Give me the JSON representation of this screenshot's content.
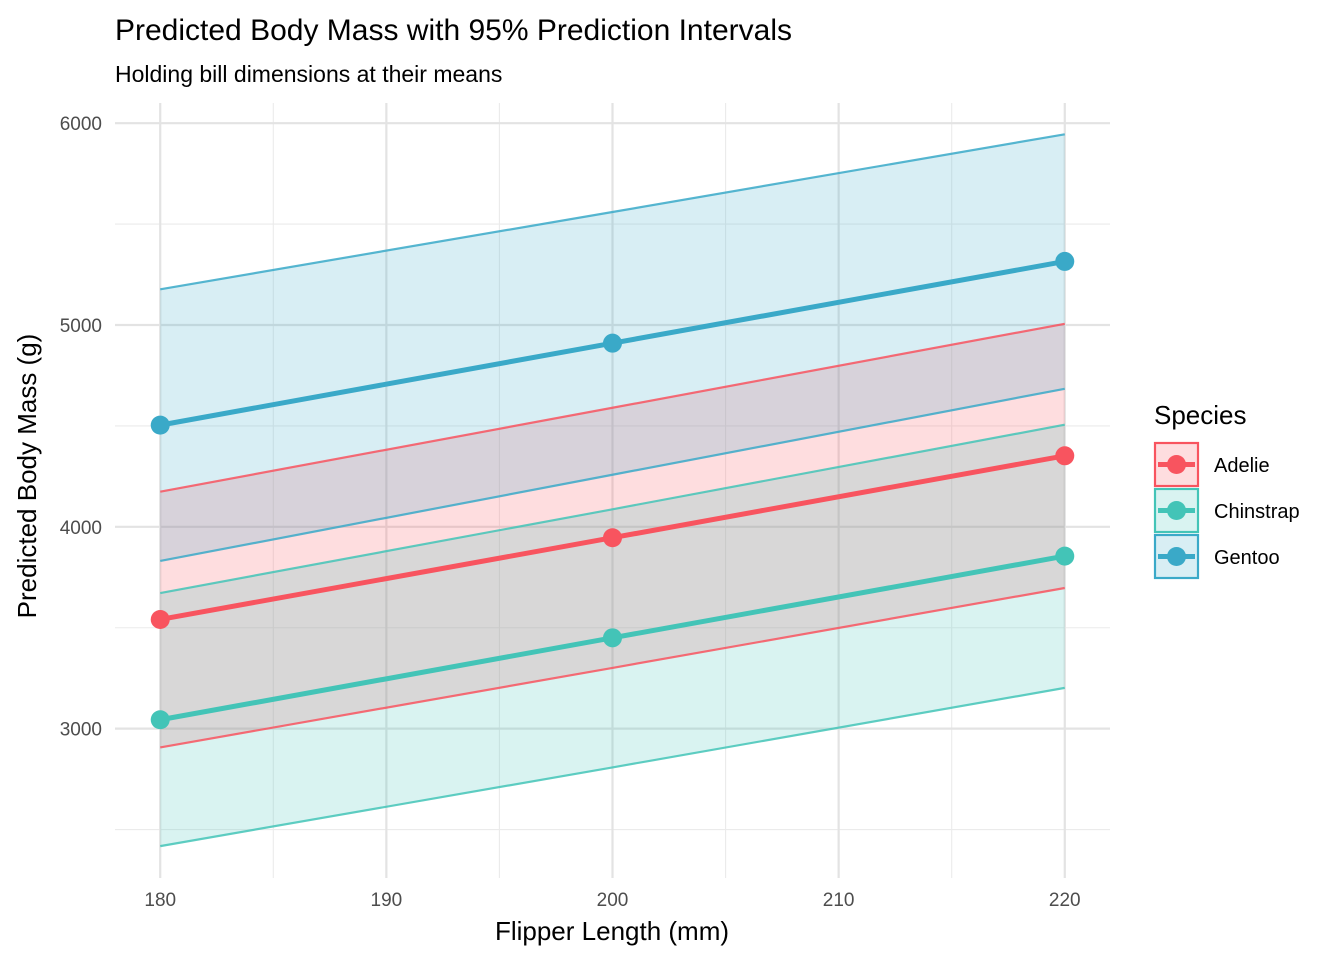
{
  "chart_data": {
    "type": "line",
    "title": "Predicted Body Mass with 95% Prediction Intervals",
    "subtitle": "Holding bill dimensions at their means",
    "xlabel": "Flipper Length (mm)",
    "ylabel": "Predicted Body Mass (g)",
    "x": [
      180,
      200,
      220
    ],
    "xlim": [
      178,
      222
    ],
    "ylim": [
      2260,
      6100
    ],
    "x_ticks": [
      180,
      190,
      200,
      210,
      220
    ],
    "y_ticks": [
      3000,
      4000,
      5000,
      6000
    ],
    "grid": true,
    "legend": {
      "title": "Species",
      "position": "right"
    },
    "series": [
      {
        "name": "Adelie",
        "color": "#F8545F",
        "values": [
          3541,
          3946,
          4352
        ],
        "lower": [
          2907,
          3301,
          3697
        ],
        "upper": [
          4174,
          4590,
          5006
        ]
      },
      {
        "name": "Chinstrap",
        "color": "#43C4B7",
        "values": [
          3044,
          3450,
          3855
        ],
        "lower": [
          2418,
          2808,
          3202
        ],
        "upper": [
          3672,
          4087,
          4506
        ]
      },
      {
        "name": "Gentoo",
        "color": "#3AA9C8",
        "values": [
          4504,
          4910,
          5315
        ],
        "lower": [
          3831,
          4258,
          4684
        ],
        "upper": [
          5177,
          5560,
          5945
        ]
      }
    ]
  }
}
